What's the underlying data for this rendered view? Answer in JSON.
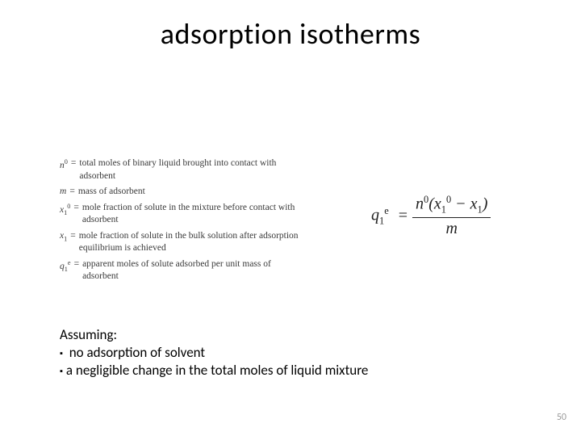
{
  "title": "adsorption isotherms",
  "definitions": [
    {
      "symbol_html": "n<span class='sup'>0</span>",
      "desc": "total moles of binary liquid brought into contact with adsorbent"
    },
    {
      "symbol_html": "m",
      "desc": "mass of adsorbent"
    },
    {
      "symbol_html": "x<span class='sub'>1</span><span class='sup'>0</span>",
      "desc": "mole fraction of solute in the mixture before contact with adsorbent"
    },
    {
      "symbol_html": "x<span class='sub'>1</span>",
      "desc": "mole fraction of solute in the bulk solution after adsorption equilibrium is achieved"
    },
    {
      "symbol_html": "q<span class='sub'>1</span><span class='sup'>e</span>",
      "desc": "apparent moles of solute adsorbed per unit mass of adsorbent"
    }
  ],
  "formula": {
    "lhs_html": "q<span class='sub2'>1</span><span class='sup2'>e</span>",
    "num_html": "n<span class='sup2'>0</span>(x<span class='sub2'>1</span><span class='sup2'>0</span> − x<span class='sub2'>1</span>)",
    "den_html": "m"
  },
  "assuming": {
    "header": "Assuming:",
    "bullets": [
      " no adsorption of solvent",
      "a negligible change in the total moles of liquid mixture"
    ]
  },
  "page_number": "50",
  "style": {
    "background": "#ffffff",
    "title_fontsize": 36,
    "defs_fontsize": 11.5,
    "defs_color": "#3a3a3a",
    "formula_fontsize": 20,
    "assume_fontsize": 17,
    "pagenum_color": "#9a9a9a",
    "bullet_glyph": "▪"
  }
}
